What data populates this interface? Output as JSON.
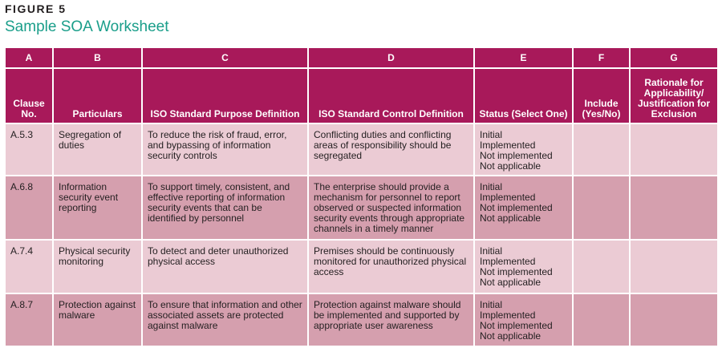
{
  "figure": {
    "label": "FIGURE 5",
    "title": "Sample SOA Worksheet"
  },
  "table": {
    "letters": [
      "A",
      "B",
      "C",
      "D",
      "E",
      "F",
      "G"
    ],
    "headers": [
      "Clause No.",
      "Particulars",
      "ISO Standard Purpose Definition",
      "ISO Standard Control Definition",
      "Status (Select One)",
      "Include (Yes/No)",
      "Rationale for Applicability/ Justification for Exclusion"
    ],
    "rows": [
      {
        "clause": "A.5.3",
        "particulars": "Segregation of duties",
        "purpose": "To reduce the risk of fraud, error, and bypassing of information security controls",
        "control": "Conflicting duties and conflicting areas of responsibility should be segregated",
        "status": [
          "Initial",
          "Implemented",
          "Not implemented",
          "Not applicable"
        ],
        "include": "",
        "rationale": ""
      },
      {
        "clause": "A.6.8",
        "particulars": "Information security event reporting",
        "purpose": "To support timely, consistent, and effective reporting of information security events that can be identified by personnel",
        "control": "The enterprise should provide a mechanism for personnel to report observed or suspected information security events through appropriate channels in a timely manner",
        "status": [
          "Initial",
          "Implemented",
          "Not implemented",
          "Not applicable"
        ],
        "include": "",
        "rationale": ""
      },
      {
        "clause": "A.7.4",
        "particulars": "Physical security monitoring",
        "purpose": "To detect and deter unauthorized physical access",
        "control": "Premises should be continuously monitored for unauthorized physical access",
        "status": [
          "Initial",
          "Implemented",
          "Not implemented",
          "Not applicable"
        ],
        "include": "",
        "rationale": ""
      },
      {
        "clause": "A.8.7",
        "particulars": "Protection against malware",
        "purpose": "To ensure that information and other associated assets are protected against malware",
        "control": "Protection against malware should be implemented and supported by appropriate user awareness",
        "status": [
          "Initial",
          "Implemented",
          "Not implemented",
          "Not applicable"
        ],
        "include": "",
        "rationale": ""
      }
    ]
  }
}
